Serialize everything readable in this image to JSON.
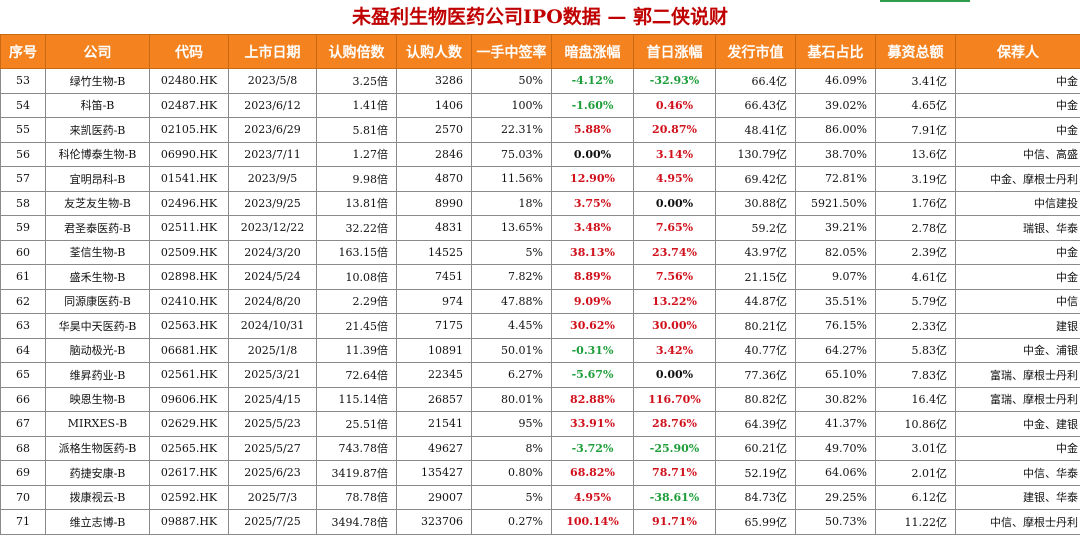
{
  "title": "未盈利生物医药公司IPO数据 — 郭二侠说财",
  "headers": [
    "序号",
    "公司",
    "代码",
    "上市日期",
    "认购倍数",
    "认购人数",
    "一手中签率",
    "暗盘涨幅",
    "首日涨幅",
    "发行市值",
    "基石占比",
    "募资总额",
    "保荐人"
  ],
  "colors": {
    "header_bg": "#f4831f",
    "title": "#c00000",
    "up": "#d0101b",
    "down": "#1e9e3a"
  },
  "rows": [
    [
      "53",
      "绿竹生物-B",
      "02480.HK",
      "2023/5/8",
      "3.25倍",
      "3286",
      "50%",
      "-4.12%",
      "-32.93%",
      "66.4亿",
      "46.09%",
      "3.41亿",
      "中金"
    ],
    [
      "54",
      "科笛-B",
      "02487.HK",
      "2023/6/12",
      "1.41倍",
      "1406",
      "100%",
      "-1.60%",
      "0.46%",
      "66.43亿",
      "39.02%",
      "4.65亿",
      "中金"
    ],
    [
      "55",
      "来凯医药-B",
      "02105.HK",
      "2023/6/29",
      "5.81倍",
      "2570",
      "22.31%",
      "5.88%",
      "20.87%",
      "48.41亿",
      "86.00%",
      "7.91亿",
      "中金"
    ],
    [
      "56",
      "科伦博泰生物-B",
      "06990.HK",
      "2023/7/11",
      "1.27倍",
      "2846",
      "75.03%",
      "0.00%",
      "3.14%",
      "130.79亿",
      "38.70%",
      "13.6亿",
      "中信、高盛"
    ],
    [
      "57",
      "宜明昂科-B",
      "01541.HK",
      "2023/9/5",
      "9.98倍",
      "4870",
      "11.56%",
      "12.90%",
      "4.95%",
      "69.42亿",
      "72.81%",
      "3.19亿",
      "中金、摩根士丹利"
    ],
    [
      "58",
      "友芝友生物-B",
      "02496.HK",
      "2023/9/25",
      "13.81倍",
      "8990",
      "18%",
      "3.75%",
      "0.00%",
      "30.88亿",
      "5921.50%",
      "1.76亿",
      "中信建投"
    ],
    [
      "59",
      "君圣泰医药-B",
      "02511.HK",
      "2023/12/22",
      "32.22倍",
      "4831",
      "13.65%",
      "3.48%",
      "7.65%",
      "59.2亿",
      "39.21%",
      "2.78亿",
      "瑞银、华泰"
    ],
    [
      "60",
      "荃信生物-B",
      "02509.HK",
      "2024/3/20",
      "163.15倍",
      "14525",
      "5%",
      "38.13%",
      "23.74%",
      "43.97亿",
      "82.05%",
      "2.39亿",
      "中金"
    ],
    [
      "61",
      "盛禾生物-B",
      "02898.HK",
      "2024/5/24",
      "10.08倍",
      "7451",
      "7.82%",
      "8.89%",
      "7.56%",
      "21.15亿",
      "9.07%",
      "4.61亿",
      "中金"
    ],
    [
      "62",
      "同源康医药-B",
      "02410.HK",
      "2024/8/20",
      "2.29倍",
      "974",
      "47.88%",
      "9.09%",
      "13.22%",
      "44.87亿",
      "35.51%",
      "5.79亿",
      "中信"
    ],
    [
      "63",
      "华昊中天医药-B",
      "02563.HK",
      "2024/10/31",
      "21.45倍",
      "7175",
      "4.45%",
      "30.62%",
      "30.00%",
      "80.21亿",
      "76.15%",
      "2.33亿",
      "建银"
    ],
    [
      "64",
      "脑动极光-B",
      "06681.HK",
      "2025/1/8",
      "11.39倍",
      "10891",
      "50.01%",
      "-0.31%",
      "3.42%",
      "40.77亿",
      "64.27%",
      "5.83亿",
      "中金、浦银"
    ],
    [
      "65",
      "维昇药业-B",
      "02561.HK",
      "2025/3/21",
      "72.64倍",
      "22345",
      "6.27%",
      "-5.67%",
      "0.00%",
      "77.36亿",
      "65.10%",
      "7.83亿",
      "富瑞、摩根士丹利"
    ],
    [
      "66",
      "映恩生物-B",
      "09606.HK",
      "2025/4/15",
      "115.14倍",
      "26857",
      "80.01%",
      "82.88%",
      "116.70%",
      "80.82亿",
      "30.82%",
      "16.4亿",
      "富瑞、摩根士丹利"
    ],
    [
      "67",
      "MIRXES-B",
      "02629.HK",
      "2025/5/23",
      "25.51倍",
      "21541",
      "95%",
      "33.91%",
      "28.76%",
      "64.39亿",
      "41.37%",
      "10.86亿",
      "中金、建银"
    ],
    [
      "68",
      "派格生物医药-B",
      "02565.HK",
      "2025/5/27",
      "743.78倍",
      "49627",
      "8%",
      "-3.72%",
      "-25.90%",
      "60.21亿",
      "49.70%",
      "3.01亿",
      "中金"
    ],
    [
      "69",
      "药捷安康-B",
      "02617.HK",
      "2025/6/23",
      "3419.87倍",
      "135427",
      "0.80%",
      "68.82%",
      "78.71%",
      "52.19亿",
      "64.06%",
      "2.01亿",
      "中信、华泰"
    ],
    [
      "70",
      "拨康视云-B",
      "02592.HK",
      "2025/7/3",
      "78.78倍",
      "29007",
      "5%",
      "4.95%",
      "-38.61%",
      "84.73亿",
      "29.25%",
      "6.12亿",
      "建银、华泰"
    ],
    [
      "71",
      "维立志博-B",
      "09887.HK",
      "2025/7/25",
      "3494.78倍",
      "323706",
      "0.27%",
      "100.14%",
      "91.71%",
      "65.99亿",
      "50.73%",
      "11.22亿",
      "中信、摩根士丹利"
    ]
  ]
}
